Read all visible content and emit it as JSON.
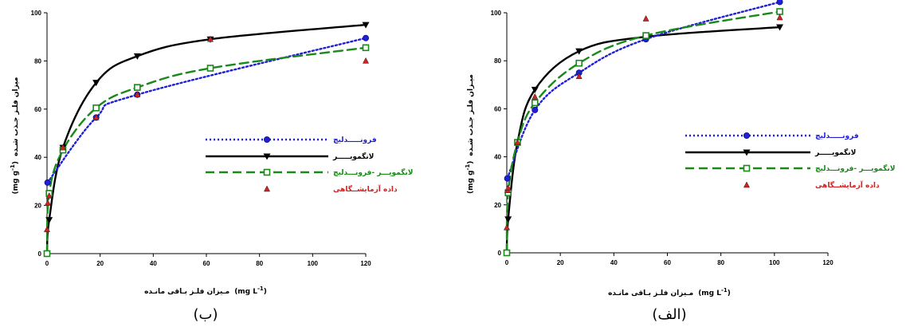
{
  "colors": {
    "freundlich": "#1f1fd6",
    "langmuir": "#000000",
    "lf": "#198a19",
    "data": "#d42020",
    "data_edge": "#222222"
  },
  "legend_labels": {
    "freundlich": "فرونـــــدلیچ",
    "langmuir": "لانگمویـــــر",
    "lf": "لانگمویـــر -فرونـــدلیچ",
    "data": "داده آزمایشــگاهی"
  },
  "chart_data": [
    {
      "type": "line",
      "caption": "(ب)",
      "xlabel": "مـیزان فلـز بـاقی مانـده",
      "xunit": "(mg L",
      "xunit_sup": "-1",
      "xunit_close": ")",
      "ylabel": "میزان فلـز جـذب شـده",
      "yunit": "(mg g",
      "yunit_sup": "-1",
      "yunit_close": ")",
      "xlim": [
        0,
        120
      ],
      "ylim": [
        0,
        100
      ],
      "xticks": [
        "0",
        "20",
        "40",
        "60",
        "80",
        "100",
        "120"
      ],
      "yticks": [
        "0",
        "20",
        "40",
        "60",
        "80",
        "100"
      ],
      "legend_position": "right-middle",
      "series": [
        {
          "key": "langmuir",
          "style": "solid",
          "marker": "tri-down",
          "marker_x": [
            0,
            0.8,
            6,
            18.5,
            34,
            61.5,
            120
          ],
          "marker_y": [
            0,
            14,
            44,
            71,
            82,
            89,
            95
          ]
        },
        {
          "key": "freundlich",
          "style": "dotted",
          "marker": "circle",
          "marker_x": [
            0.2,
            18.5,
            34,
            120
          ],
          "marker_y": [
            29.5,
            56.5,
            66,
            89.5
          ]
        },
        {
          "key": "lf",
          "style": "dashed",
          "marker": "square",
          "marker_x": [
            0,
            0.8,
            6,
            18.5,
            34,
            61.5,
            120
          ],
          "marker_y": [
            0,
            25,
            43,
            60.5,
            69,
            77,
            85.5
          ]
        },
        {
          "key": "data",
          "style": "none",
          "marker": "tri-up",
          "marker_x": [
            0,
            0.3,
            0.8,
            6,
            18.5,
            34,
            61.5,
            120
          ],
          "marker_y": [
            10,
            21,
            24,
            44,
            56.5,
            66,
            89,
            80
          ]
        }
      ]
    },
    {
      "type": "line",
      "caption": "(الف)",
      "xlabel": "مـیزان فلـز بـاقی مانـده",
      "xunit": "(mg L",
      "xunit_sup": "-1",
      "xunit_close": ")",
      "ylabel": "میـزان فلـز جـذب شـده",
      "yunit": "(mg g",
      "yunit_sup": "-1",
      "yunit_close": ")",
      "xlim": [
        0,
        120
      ],
      "ylim": [
        0,
        100
      ],
      "xticks": [
        "0",
        "20",
        "40",
        "60",
        "80",
        "100",
        "120"
      ],
      "yticks": [
        "0",
        "20",
        "40",
        "60",
        "80",
        "100"
      ],
      "legend_position": "right-middle",
      "series": [
        {
          "key": "langmuir",
          "style": "solid",
          "marker": "tri-down",
          "marker_x": [
            0,
            0.5,
            4,
            10.5,
            27,
            52,
            102
          ],
          "marker_y": [
            0,
            14,
            46,
            68,
            84,
            90,
            94
          ]
        },
        {
          "key": "freundlich",
          "style": "dotted",
          "marker": "circle",
          "marker_x": [
            0.2,
            10.5,
            27,
            52,
            102
          ],
          "marker_y": [
            31,
            59.5,
            75,
            89,
            104.5
          ]
        },
        {
          "key": "lf",
          "style": "dashed",
          "marker": "square",
          "marker_x": [
            0,
            0.5,
            4,
            10.5,
            27,
            52,
            102
          ],
          "marker_y": [
            0,
            25,
            46,
            62.5,
            79,
            90.5,
            100.5
          ]
        },
        {
          "key": "data",
          "style": "none",
          "marker": "tri-up",
          "marker_x": [
            0,
            0.3,
            0.5,
            4,
            10.5,
            27,
            52,
            102
          ],
          "marker_y": [
            10.5,
            26,
            27,
            46,
            65,
            73.5,
            97.5,
            98
          ]
        }
      ]
    }
  ]
}
